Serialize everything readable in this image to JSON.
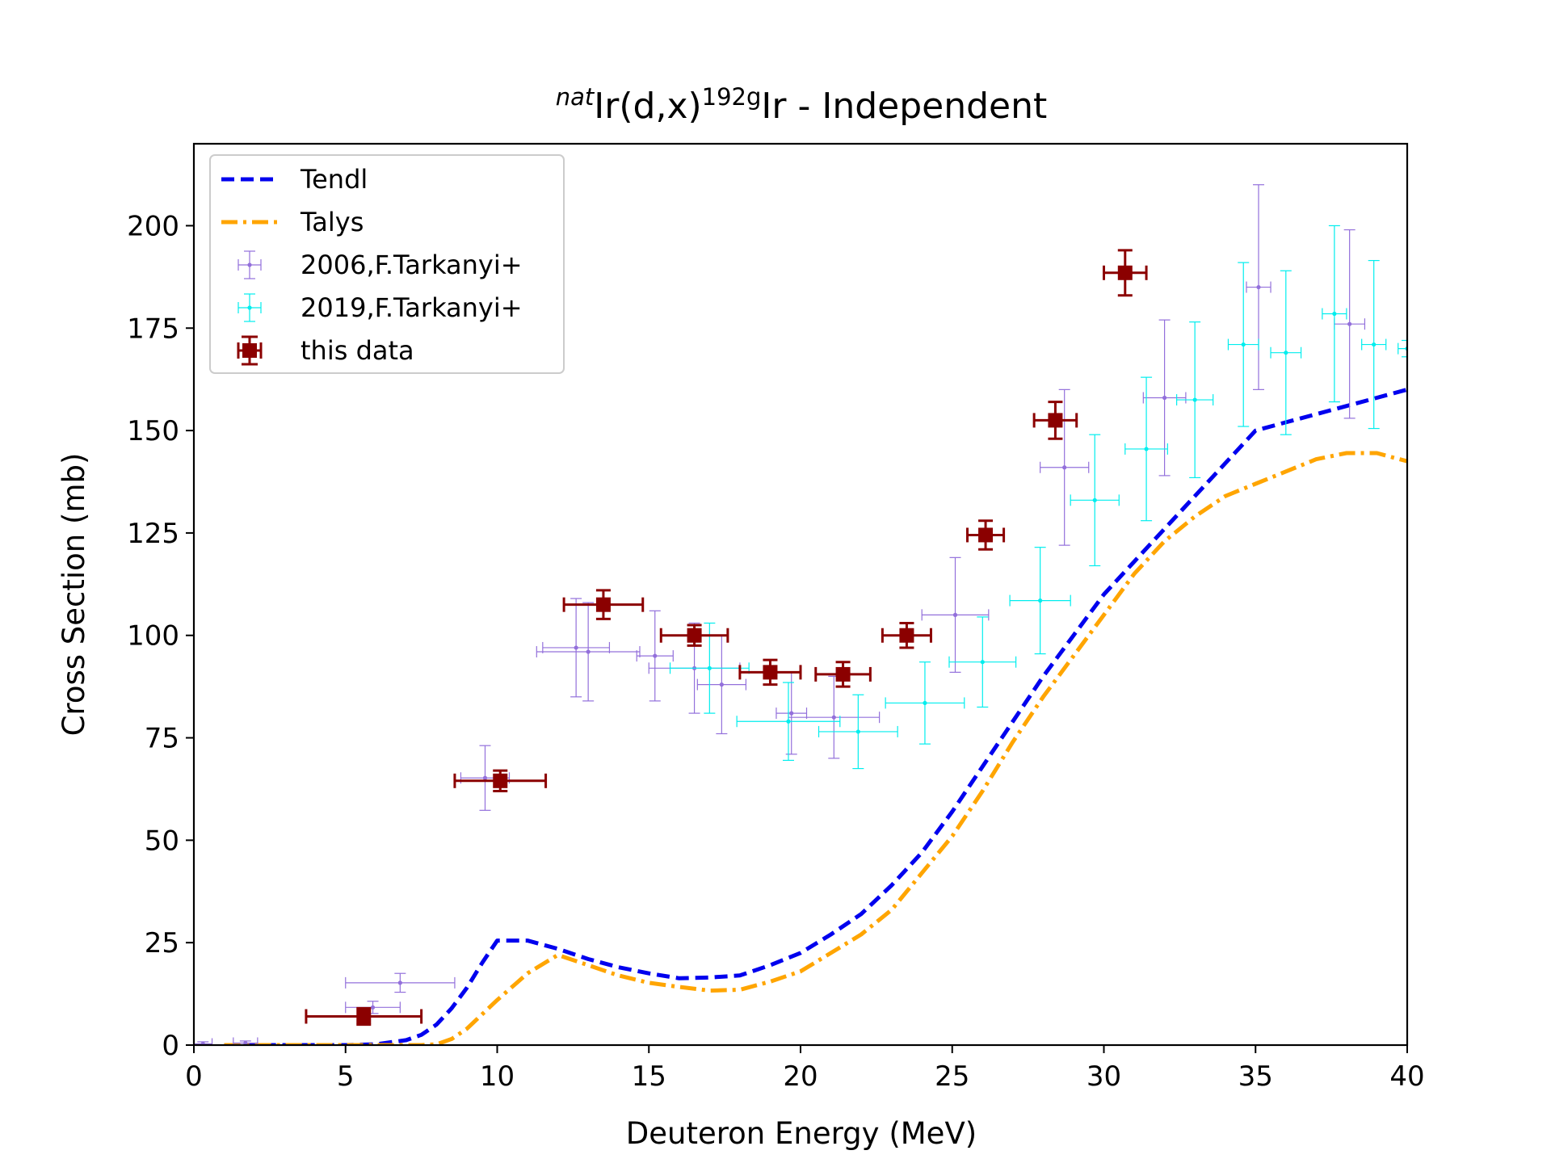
{
  "chart_data": {
    "type": "scatter",
    "title": {
      "sup1": "nat",
      "part1": "Ir(d,x)",
      "sup2": "192g",
      "part2": "Ir - Independent"
    },
    "xlabel": "Deuteron Energy (MeV)",
    "ylabel": "Cross Section (mb)",
    "xlim": [
      0,
      40
    ],
    "ylim": [
      0,
      220
    ],
    "xticks": [
      0,
      5,
      10,
      15,
      20,
      25,
      30,
      35,
      40
    ],
    "yticks": [
      0,
      25,
      50,
      75,
      100,
      125,
      150,
      175,
      200
    ],
    "legend_position": "upper-left",
    "grid": false,
    "curves": [
      {
        "name": "Tendl",
        "color": "#0000ee",
        "style": "dashed",
        "x": [
          1,
          2,
          3,
          4,
          5,
          6,
          7,
          7.5,
          8,
          8.5,
          9,
          9.5,
          10,
          11,
          12,
          13,
          14,
          15,
          16,
          17,
          18,
          19,
          20,
          21,
          22,
          23,
          24,
          25,
          26,
          27,
          28,
          29,
          30,
          31,
          32,
          33,
          34,
          35,
          36,
          37,
          38,
          39,
          40
        ],
        "y": [
          0,
          0,
          0,
          0,
          0,
          0.2,
          1.2,
          2.5,
          5,
          9,
          14,
          20,
          25.5,
          25.5,
          23.5,
          21,
          19,
          17.5,
          16.3,
          16.5,
          17,
          19.5,
          22.5,
          27,
          32,
          39,
          47,
          57,
          68,
          79,
          90,
          100,
          110,
          118,
          126,
          134,
          142,
          150,
          152,
          154,
          156,
          158,
          160
        ]
      },
      {
        "name": "Talys",
        "color": "#ffa500",
        "style": "dashdot",
        "x": [
          1,
          2,
          3,
          4,
          5,
          6,
          7,
          7.5,
          8,
          8.5,
          9,
          9.5,
          10,
          11,
          12,
          13,
          14,
          15,
          16,
          17,
          18,
          19,
          20,
          21,
          22,
          23,
          24,
          25,
          26,
          27,
          28,
          29,
          30,
          31,
          32,
          33,
          34,
          35,
          36,
          37,
          38,
          39,
          39.5,
          40
        ],
        "y": [
          0,
          0,
          0,
          0,
          0,
          0,
          0,
          0,
          0.2,
          1.5,
          4,
          7.5,
          11,
          17.5,
          22,
          19.5,
          17,
          15.2,
          14.2,
          13.3,
          13.5,
          15.5,
          18,
          22.5,
          27,
          33,
          42,
          51,
          62,
          74,
          85,
          95,
          105,
          115,
          123,
          129,
          134,
          137,
          140,
          143,
          144.5,
          144.5,
          143.5,
          142.5
        ]
      }
    ],
    "series": [
      {
        "name": "2006,F.Tarkanyi+",
        "color": "#9370db",
        "marker": "small",
        "points": [
          {
            "x": 0.3,
            "y": 0.3,
            "xerr": 0.3,
            "yerr": 0.5
          },
          {
            "x": 1.7,
            "y": 0.5,
            "xerr": 0.4,
            "yerr": 0.5
          },
          {
            "x": 6.8,
            "y": 15.2,
            "xerr": 1.8,
            "yerr": 2.3
          },
          {
            "x": 5.9,
            "y": 9.2,
            "xerr": 0.9,
            "yerr": 1.5
          },
          {
            "x": 9.6,
            "y": 65.2,
            "xerr": 0.8,
            "yerr": 7.9
          },
          {
            "x": 12.6,
            "y": 97,
            "xerr": 1.1,
            "yerr": 12
          },
          {
            "x": 13.0,
            "y": 96,
            "xerr": 1.7,
            "yerr": 12
          },
          {
            "x": 15.2,
            "y": 95,
            "xerr": 0.6,
            "yerr": 11
          },
          {
            "x": 16.5,
            "y": 92,
            "xerr": 1.5,
            "yerr": 11
          },
          {
            "x": 17.4,
            "y": 88,
            "xerr": 0.8,
            "yerr": 12
          },
          {
            "x": 19.7,
            "y": 81,
            "xerr": 0.5,
            "yerr": 10
          },
          {
            "x": 21.1,
            "y": 80,
            "xerr": 1.5,
            "yerr": 10
          },
          {
            "x": 25.1,
            "y": 105,
            "xerr": 1.1,
            "yerr": 14
          },
          {
            "x": 28.7,
            "y": 141,
            "xerr": 0.8,
            "yerr": 19
          },
          {
            "x": 32.0,
            "y": 158,
            "xerr": 0.7,
            "yerr": 19
          },
          {
            "x": 35.1,
            "y": 185,
            "xerr": 0.4,
            "yerr": 25
          },
          {
            "x": 38.1,
            "y": 176,
            "xerr": 0.5,
            "yerr": 23
          }
        ]
      },
      {
        "name": "2019,F.Tarkanyi+",
        "color": "#00eeee",
        "marker": "small",
        "points": [
          {
            "x": 17.0,
            "y": 92,
            "xerr": 1.3,
            "yerr": 11
          },
          {
            "x": 19.6,
            "y": 79,
            "xerr": 1.7,
            "yerr": 9.5
          },
          {
            "x": 21.9,
            "y": 76.5,
            "xerr": 1.3,
            "yerr": 9
          },
          {
            "x": 24.1,
            "y": 83.5,
            "xerr": 1.3,
            "yerr": 10
          },
          {
            "x": 26.0,
            "y": 93.5,
            "xerr": 1.1,
            "yerr": 11
          },
          {
            "x": 27.9,
            "y": 108.5,
            "xerr": 1.0,
            "yerr": 13
          },
          {
            "x": 29.7,
            "y": 133,
            "xerr": 0.8,
            "yerr": 16
          },
          {
            "x": 31.4,
            "y": 145.5,
            "xerr": 0.7,
            "yerr": 17.5
          },
          {
            "x": 33.0,
            "y": 157.5,
            "xerr": 0.6,
            "yerr": 19
          },
          {
            "x": 34.6,
            "y": 171,
            "xerr": 0.5,
            "yerr": 20
          },
          {
            "x": 36.0,
            "y": 169,
            "xerr": 0.5,
            "yerr": 20
          },
          {
            "x": 37.6,
            "y": 178.5,
            "xerr": 0.4,
            "yerr": 21.5
          },
          {
            "x": 38.9,
            "y": 171,
            "xerr": 0.4,
            "yerr": 20.5
          },
          {
            "x": 40.0,
            "y": 170,
            "xerr": 0.3,
            "yerr": 2
          }
        ]
      },
      {
        "name": "this data",
        "color": "#8b0000",
        "marker": "square",
        "points": [
          {
            "x": 5.6,
            "y": 7,
            "xerr": 1.9,
            "yerr": 2
          },
          {
            "x": 10.1,
            "y": 64.5,
            "xerr": 1.5,
            "yerr": 2.5
          },
          {
            "x": 13.5,
            "y": 107.5,
            "xerr": 1.3,
            "yerr": 3.5
          },
          {
            "x": 16.5,
            "y": 100,
            "xerr": 1.1,
            "yerr": 2.5
          },
          {
            "x": 19.0,
            "y": 91,
            "xerr": 1.0,
            "yerr": 3
          },
          {
            "x": 21.4,
            "y": 90.5,
            "xerr": 0.9,
            "yerr": 3
          },
          {
            "x": 23.5,
            "y": 100,
            "xerr": 0.8,
            "yerr": 3
          },
          {
            "x": 26.1,
            "y": 124.5,
            "xerr": 0.6,
            "yerr": 3.5
          },
          {
            "x": 28.4,
            "y": 152.5,
            "xerr": 0.7,
            "yerr": 4.5
          },
          {
            "x": 30.7,
            "y": 188.5,
            "xerr": 0.7,
            "yerr": 5.5
          }
        ]
      }
    ]
  }
}
